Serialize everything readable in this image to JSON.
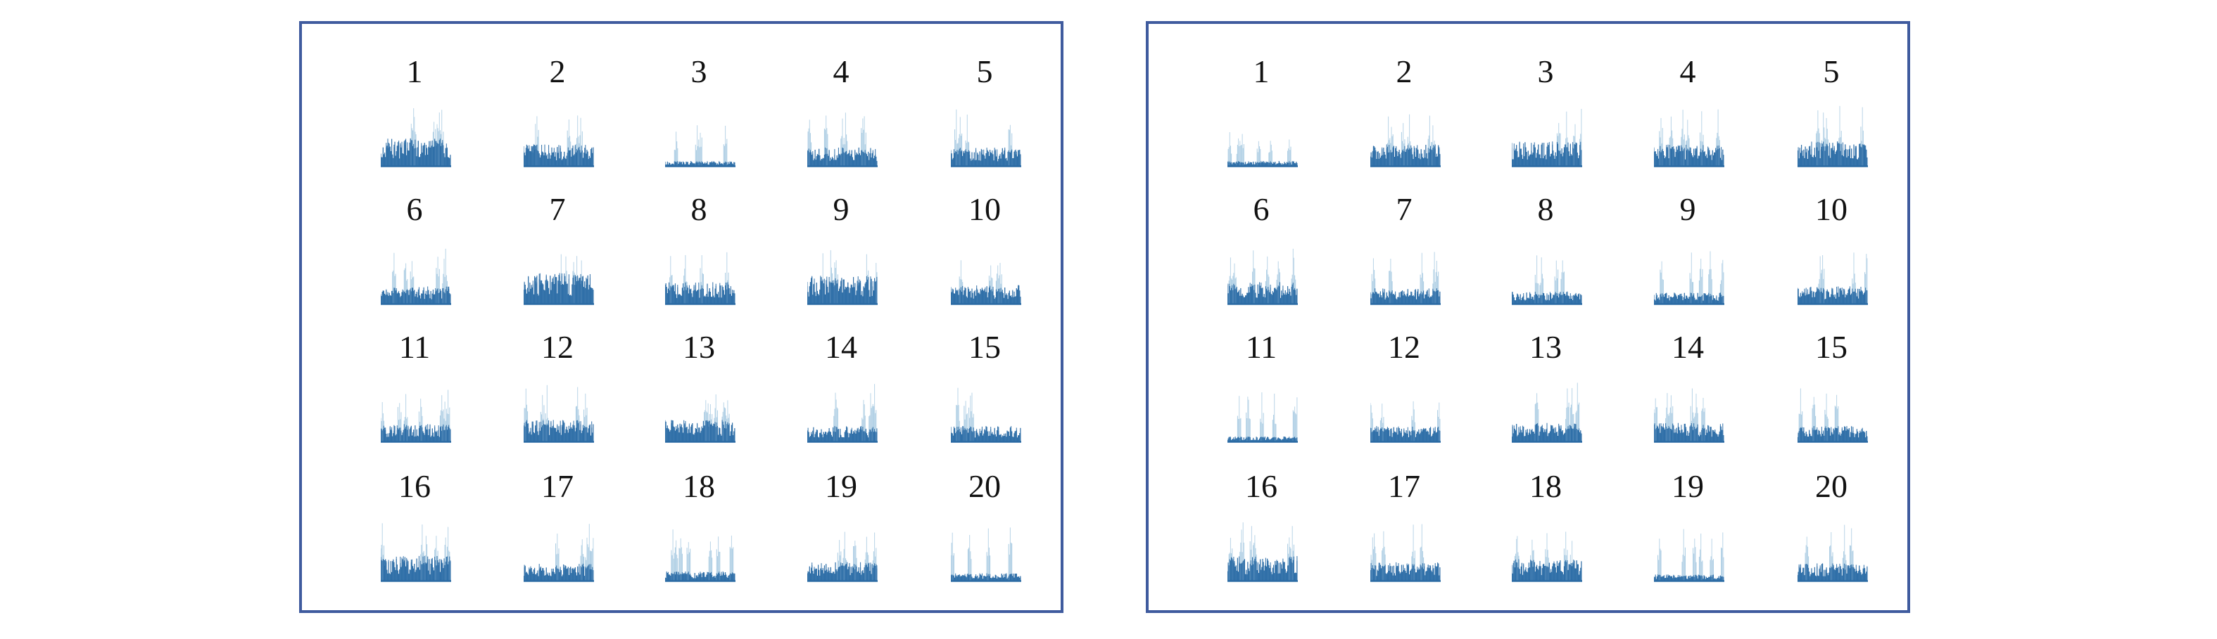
{
  "colors": {
    "border": "#3f5b9e",
    "series_dark": "#2f6fa8",
    "series_light": "#a9cbe2",
    "baseline": "#2a6aa3"
  },
  "chart_data": [
    {
      "type": "bar",
      "panel": "left",
      "title": "",
      "xlabel": "",
      "ylabel": "",
      "grid": false,
      "small_multiples": [
        {
          "label": "1",
          "peak": 0.95,
          "base": 0.45
        },
        {
          "label": "2",
          "peak": 0.9,
          "base": 0.35
        },
        {
          "label": "3",
          "peak": 0.72,
          "base": 0.08
        },
        {
          "label": "4",
          "peak": 0.95,
          "base": 0.3
        },
        {
          "label": "5",
          "peak": 0.92,
          "base": 0.3
        },
        {
          "label": "6",
          "peak": 0.9,
          "base": 0.28
        },
        {
          "label": "7",
          "peak": 0.85,
          "base": 0.5
        },
        {
          "label": "8",
          "peak": 0.95,
          "base": 0.35
        },
        {
          "label": "9",
          "peak": 0.9,
          "base": 0.45
        },
        {
          "label": "10",
          "peak": 0.8,
          "base": 0.3
        },
        {
          "label": "11",
          "peak": 0.88,
          "base": 0.28
        },
        {
          "label": "12",
          "peak": 0.92,
          "base": 0.35
        },
        {
          "label": "13",
          "peak": 0.85,
          "base": 0.35
        },
        {
          "label": "14",
          "peak": 0.95,
          "base": 0.25
        },
        {
          "label": "15",
          "peak": 0.92,
          "base": 0.25
        },
        {
          "label": "16",
          "peak": 0.95,
          "base": 0.4
        },
        {
          "label": "17",
          "peak": 0.95,
          "base": 0.28
        },
        {
          "label": "18",
          "peak": 0.85,
          "base": 0.15
        },
        {
          "label": "19",
          "peak": 0.88,
          "base": 0.3
        },
        {
          "label": "20",
          "peak": 0.95,
          "base": 0.12
        }
      ]
    },
    {
      "type": "bar",
      "panel": "right",
      "title": "",
      "xlabel": "",
      "ylabel": "",
      "grid": false,
      "small_multiples": [
        {
          "label": "1",
          "peak": 0.55,
          "base": 0.08
        },
        {
          "label": "2",
          "peak": 0.9,
          "base": 0.35
        },
        {
          "label": "3",
          "peak": 0.95,
          "base": 0.4
        },
        {
          "label": "4",
          "peak": 0.98,
          "base": 0.35
        },
        {
          "label": "5",
          "peak": 0.98,
          "base": 0.4
        },
        {
          "label": "6",
          "peak": 0.9,
          "base": 0.35
        },
        {
          "label": "7",
          "peak": 0.88,
          "base": 0.25
        },
        {
          "label": "8",
          "peak": 0.85,
          "base": 0.2
        },
        {
          "label": "9",
          "peak": 0.9,
          "base": 0.18
        },
        {
          "label": "10",
          "peak": 0.92,
          "base": 0.28
        },
        {
          "label": "11",
          "peak": 0.8,
          "base": 0.08
        },
        {
          "label": "12",
          "peak": 0.8,
          "base": 0.25
        },
        {
          "label": "13",
          "peak": 0.98,
          "base": 0.3
        },
        {
          "label": "14",
          "peak": 0.92,
          "base": 0.3
        },
        {
          "label": "15",
          "peak": 0.95,
          "base": 0.25
        },
        {
          "label": "16",
          "peak": 0.98,
          "base": 0.4
        },
        {
          "label": "17",
          "peak": 0.92,
          "base": 0.3
        },
        {
          "label": "18",
          "peak": 0.8,
          "base": 0.35
        },
        {
          "label": "19",
          "peak": 0.85,
          "base": 0.1
        },
        {
          "label": "20",
          "peak": 0.92,
          "base": 0.28
        }
      ]
    }
  ]
}
